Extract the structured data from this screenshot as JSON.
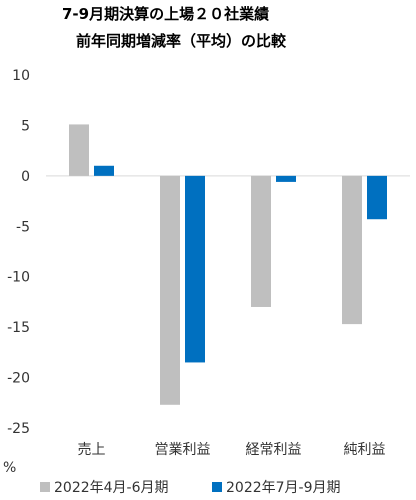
{
  "chart_data": {
    "type": "bar",
    "title_line1": "7-9月期決算の上場２０社業績",
    "title_line2": "前年同期増減率（平均）の比較",
    "ylabel": "%",
    "ylim": [
      -25,
      10
    ],
    "yticks": [
      10,
      5,
      0,
      -5,
      -10,
      -15,
      -20,
      -25
    ],
    "categories": [
      "売上",
      "営業利益",
      "経常利益",
      "純利益"
    ],
    "series": [
      {
        "name": "2022年4月-6月期",
        "color": "#bfbfbf",
        "values": [
          5.1,
          -22.7,
          -13.0,
          -14.7
        ]
      },
      {
        "name": "2022年7月-9月期",
        "color": "#0070c0",
        "values": [
          1.0,
          -18.5,
          -0.6,
          -4.3
        ]
      }
    ],
    "grid": false,
    "legend_position": "bottom"
  }
}
